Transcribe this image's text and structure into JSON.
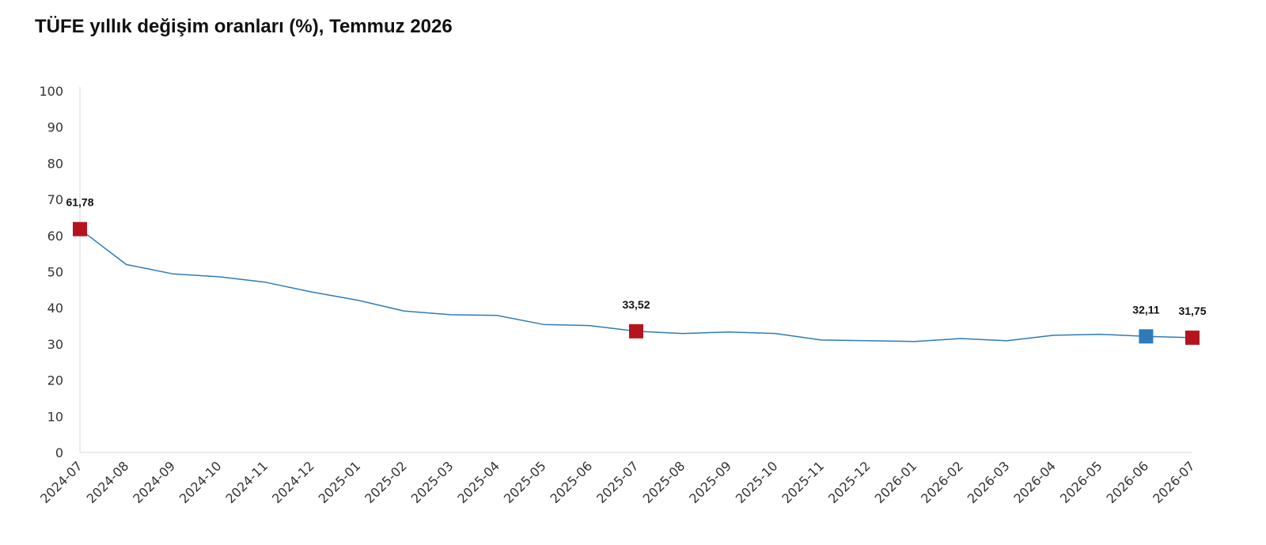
{
  "chart_data": {
    "type": "line",
    "title": "TÜFE yıllık değişim oranları (%), Temmuz 2026",
    "xlabel": "",
    "ylabel": "",
    "ylim": [
      0,
      100
    ],
    "yticks": [
      "0",
      "10",
      "20",
      "30",
      "40",
      "50",
      "60",
      "70",
      "80",
      "90",
      "100"
    ],
    "grid": false,
    "categories": [
      "2024-07",
      "2024-08",
      "2024-09",
      "2024-10",
      "2024-11",
      "2024-12",
      "2025-01",
      "2025-02",
      "2025-03",
      "2025-04",
      "2025-05",
      "2025-06",
      "2025-07",
      "2025-08",
      "2025-09",
      "2025-10",
      "2025-11",
      "2025-12",
      "2026-01",
      "2026-02",
      "2026-03",
      "2026-04",
      "2026-05",
      "2026-06",
      "2026-07"
    ],
    "series": [
      {
        "values": [
          61.78,
          52.0,
          49.4,
          48.6,
          47.1,
          44.4,
          42.1,
          39.1,
          38.1,
          37.9,
          35.4,
          35.1,
          33.52,
          32.9,
          33.3,
          32.9,
          31.1,
          30.9,
          30.7,
          31.5,
          30.9,
          32.4,
          32.7,
          32.11,
          31.75
        ],
        "color": "#2e7bb8"
      }
    ],
    "highlights": [
      {
        "category": "2024-07",
        "value": 61.78,
        "label": "61,78",
        "color": "#b5141f"
      },
      {
        "category": "2025-07",
        "value": 33.52,
        "label": "33,52",
        "color": "#b5141f"
      },
      {
        "category": "2026-06",
        "value": 32.11,
        "label": "32,11",
        "color": "#2e7bb8"
      },
      {
        "category": "2026-07",
        "value": 31.75,
        "label": "31,75",
        "color": "#b5141f"
      }
    ]
  }
}
